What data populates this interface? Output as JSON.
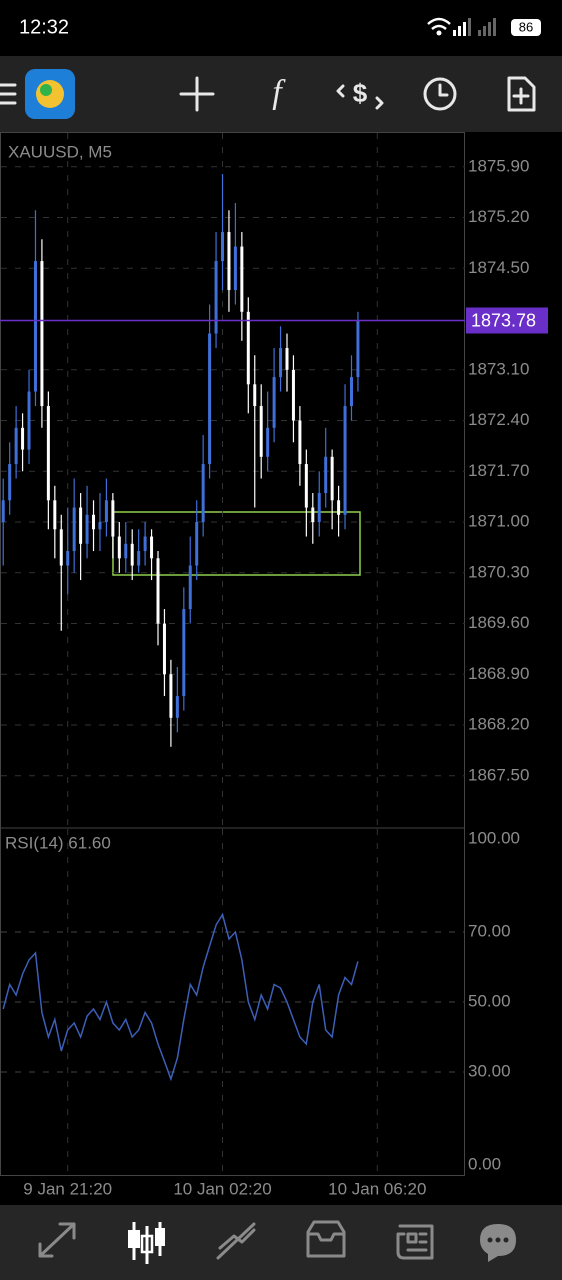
{
  "status_bar": {
    "time": "12:32",
    "battery": "86"
  },
  "chart_data": [
    {
      "type": "candlestick",
      "title": "XAUUSD, M5",
      "open": [
        1871.0,
        1871.3,
        1871.8,
        1872.3,
        1872.0,
        1872.8,
        1874.6,
        1872.6,
        1871.3,
        1870.9,
        1870.4,
        1870.6,
        1871.2,
        1870.7,
        1871.1,
        1870.9,
        1871.0,
        1871.3,
        1870.8,
        1870.5,
        1870.7,
        1870.4,
        1870.6,
        1870.8,
        1870.5,
        1869.6,
        1868.9,
        1868.3,
        1868.6,
        1869.8,
        1870.4,
        1871.0,
        1871.8,
        1873.6,
        1874.6,
        1875.0,
        1874.2,
        1874.8,
        1873.9,
        1872.9,
        1872.6,
        1871.9,
        1872.3,
        1873.0,
        1873.4,
        1873.1,
        1872.4,
        1871.8,
        1871.2,
        1871.0,
        1871.4,
        1871.9,
        1871.3,
        1871.1,
        1872.6,
        1873.0
      ],
      "high": [
        1871.6,
        1872.1,
        1872.6,
        1872.5,
        1873.1,
        1875.3,
        1874.9,
        1872.8,
        1871.5,
        1871.1,
        1871.2,
        1871.6,
        1871.4,
        1871.5,
        1871.3,
        1871.4,
        1871.6,
        1871.4,
        1871.0,
        1871.0,
        1870.9,
        1870.9,
        1871.0,
        1870.9,
        1870.6,
        1869.8,
        1869.1,
        1869.0,
        1870.1,
        1870.8,
        1871.3,
        1872.2,
        1874.0,
        1875.0,
        1875.8,
        1875.3,
        1875.4,
        1875.0,
        1874.1,
        1873.3,
        1872.9,
        1872.8,
        1873.4,
        1873.7,
        1873.6,
        1873.3,
        1872.6,
        1872.0,
        1871.4,
        1871.7,
        1872.3,
        1872.0,
        1871.5,
        1872.9,
        1873.3,
        1873.9
      ],
      "low": [
        1870.4,
        1871.1,
        1871.6,
        1871.7,
        1871.8,
        1872.6,
        1872.3,
        1870.9,
        1870.5,
        1869.5,
        1870.0,
        1870.3,
        1870.2,
        1870.5,
        1870.6,
        1870.6,
        1870.8,
        1870.5,
        1870.3,
        1870.3,
        1870.2,
        1870.3,
        1870.4,
        1870.2,
        1869.3,
        1868.6,
        1867.9,
        1868.1,
        1868.4,
        1869.6,
        1870.2,
        1870.8,
        1871.6,
        1873.4,
        1874.2,
        1873.9,
        1874.0,
        1873.5,
        1872.5,
        1871.2,
        1871.6,
        1871.7,
        1872.1,
        1872.8,
        1872.8,
        1872.1,
        1871.5,
        1870.8,
        1870.7,
        1870.8,
        1871.2,
        1870.9,
        1870.8,
        1870.9,
        1872.4,
        1872.8
      ],
      "close": [
        1871.3,
        1871.8,
        1872.3,
        1872.0,
        1872.8,
        1874.6,
        1872.6,
        1871.3,
        1870.9,
        1870.4,
        1870.6,
        1871.2,
        1870.7,
        1871.1,
        1870.9,
        1871.0,
        1871.3,
        1870.8,
        1870.5,
        1870.7,
        1870.4,
        1870.6,
        1870.8,
        1870.5,
        1869.6,
        1868.9,
        1868.3,
        1868.6,
        1869.8,
        1870.4,
        1871.0,
        1871.8,
        1873.6,
        1874.6,
        1875.0,
        1874.2,
        1874.8,
        1873.9,
        1872.9,
        1872.6,
        1871.9,
        1872.3,
        1873.0,
        1873.4,
        1873.1,
        1872.4,
        1871.8,
        1871.2,
        1871.0,
        1871.4,
        1871.9,
        1871.3,
        1871.1,
        1872.6,
        1873.0,
        1873.78
      ],
      "up_color": "#3f6fd8",
      "down_color": "#ffffff",
      "current_price": 1873.78,
      "price_line_color": "#6a2fc8",
      "ylim": [
        1866.78,
        1876.38
      ],
      "yticks": [
        {
          "value": 1875.9,
          "label": "1875.90"
        },
        {
          "value": 1875.2,
          "label": "1875.20"
        },
        {
          "value": 1874.5,
          "label": "1874.50"
        },
        {
          "value": 1873.1,
          "label": "1873.10"
        },
        {
          "value": 1872.4,
          "label": "1872.40"
        },
        {
          "value": 1871.7,
          "label": "1871.70"
        },
        {
          "value": 1871.0,
          "label": "1871.00"
        },
        {
          "value": 1870.3,
          "label": "1870.30"
        },
        {
          "value": 1869.6,
          "label": "1869.60"
        },
        {
          "value": 1868.9,
          "label": "1868.90"
        },
        {
          "value": 1868.2,
          "label": "1868.20"
        },
        {
          "value": 1867.5,
          "label": "1867.50"
        }
      ],
      "xlim": [
        -0.5,
        71.6
      ],
      "xticks": [
        {
          "value": 10,
          "label": "9 Jan 21:20"
        },
        {
          "value": 34,
          "label": "10 Jan 02:20"
        },
        {
          "value": 58,
          "label": "10 Jan 06:20"
        }
      ],
      "grid": true
    },
    {
      "type": "line",
      "title": "RSI(14) 61.60",
      "values": [
        48,
        55,
        52,
        58,
        62,
        64,
        47,
        40,
        45,
        36,
        42,
        44,
        40,
        46,
        48,
        45,
        50,
        44,
        42,
        45,
        40,
        42,
        47,
        44,
        38,
        33,
        28,
        34,
        45,
        55,
        52,
        60,
        66,
        72,
        75,
        68,
        70,
        62,
        50,
        45,
        52,
        48,
        55,
        54,
        50,
        45,
        40,
        38,
        50,
        55,
        42,
        40,
        52,
        57,
        55,
        61.6
      ],
      "color": "#3d5fb8",
      "ylim": [
        0,
        100
      ],
      "yticks": [
        {
          "value": 100,
          "label": "100.00"
        },
        {
          "value": 70,
          "label": "70.00"
        },
        {
          "value": 50,
          "label": "50.00"
        },
        {
          "value": 30,
          "label": "30.00"
        },
        {
          "value": 0,
          "label": "0.00"
        }
      ],
      "grid": true
    }
  ]
}
